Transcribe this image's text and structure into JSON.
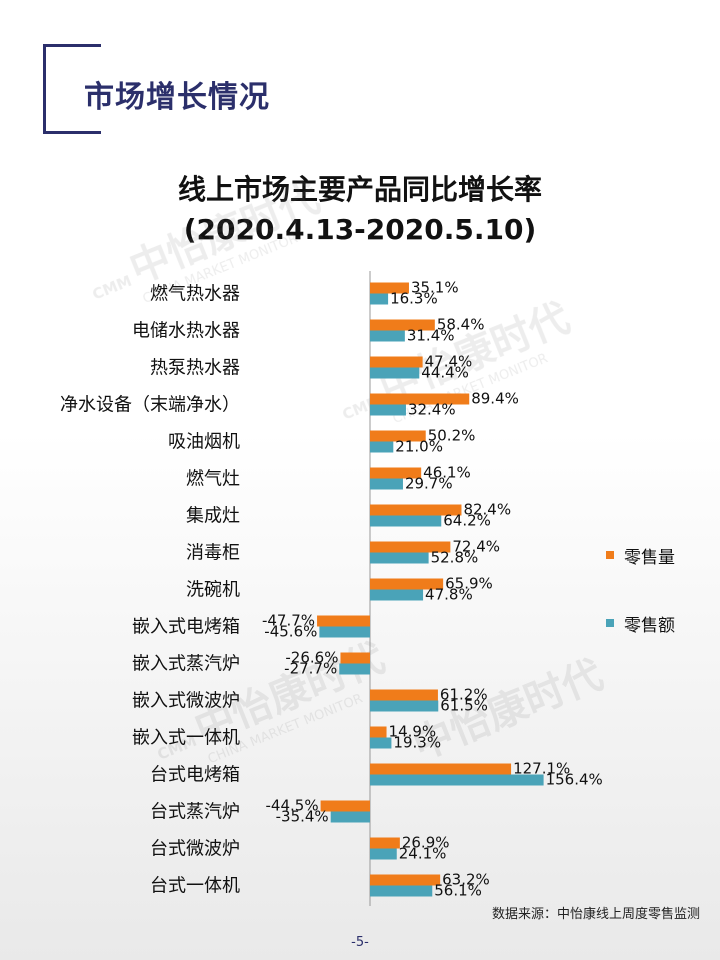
{
  "header": {
    "title": "市场增长情况"
  },
  "chart_data": {
    "type": "bar",
    "orientation": "horizontal",
    "title": "线上市场主要产品同比增长率",
    "subtitle": "(2020.4.13-2020.5.10)",
    "categories": [
      "燃气热水器",
      "电储水热水器",
      "热泵热水器",
      "净水设备（末端净水）",
      "吸油烟机",
      "燃气灶",
      "集成灶",
      "消毒柜",
      "洗碗机",
      "嵌入式电烤箱",
      "嵌入式蒸汽炉",
      "嵌入式微波炉",
      "嵌入式一体机",
      "台式电烤箱",
      "台式蒸汽炉",
      "台式微波炉",
      "台式一体机"
    ],
    "series": [
      {
        "name": "零售量",
        "color": "#f07c1a",
        "values": [
          35.1,
          58.4,
          47.4,
          89.4,
          50.2,
          46.1,
          82.4,
          72.4,
          65.9,
          -47.7,
          -26.6,
          61.2,
          14.9,
          127.1,
          -44.5,
          26.9,
          63.2
        ],
        "labels": [
          "35.1%",
          "58.4%",
          "47.4%",
          "89.4%",
          "50.2%",
          "46.1%",
          "82.4%",
          "72.4%",
          "65.9%",
          "-47.7%",
          "-26.6%",
          "61.2%",
          "14.9%",
          "127.1%",
          "-44.5%",
          "26.9%",
          "63.2%"
        ]
      },
      {
        "name": "零售额",
        "color": "#4aa3b8",
        "values": [
          16.3,
          31.4,
          44.4,
          32.4,
          21.0,
          29.7,
          64.2,
          52.8,
          47.8,
          -45.6,
          -27.7,
          61.5,
          19.3,
          156.4,
          -35.4,
          24.1,
          56.1
        ],
        "labels": [
          "16.3%",
          "31.4%",
          "44.4%",
          "32.4%",
          "21.0%",
          "29.7%",
          "64.2%",
          "52.8%",
          "47.8%",
          "-45.6%",
          "-27.7%",
          "61.5%",
          "19.3%",
          "156.4%",
          "-35.4%",
          "24.1%",
          "56.1%"
        ]
      }
    ],
    "legend_position": "right",
    "grid": false,
    "source": "数据来源：中怡康线上周度零售监测"
  },
  "watermark": {
    "cn": "中怡康时代",
    "en": "CHINA MARKET MONITOR",
    "logo": "CMM"
  },
  "page": {
    "number": "-5-"
  }
}
